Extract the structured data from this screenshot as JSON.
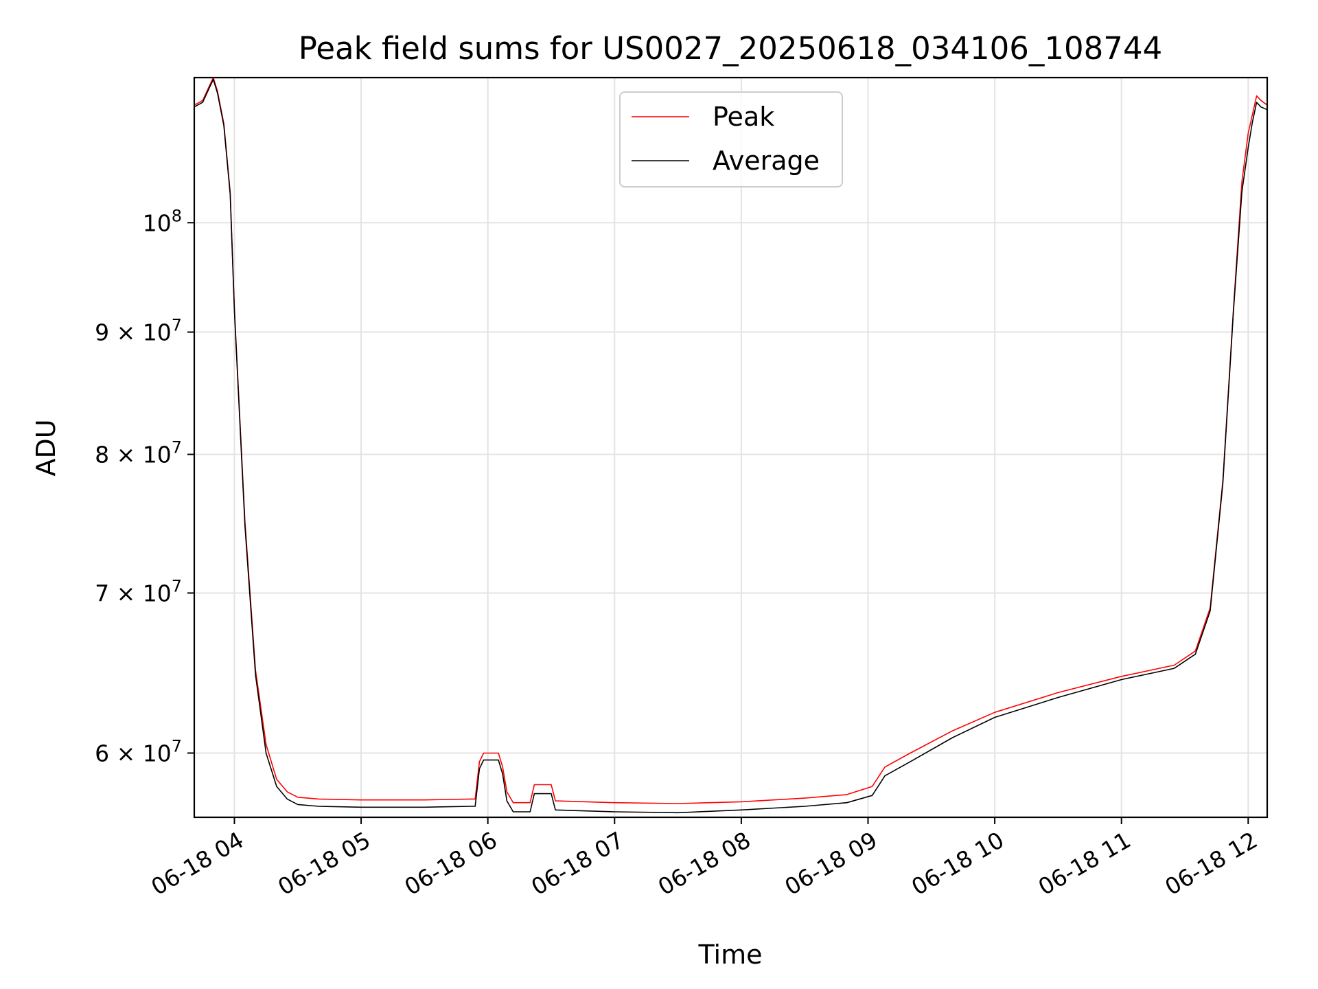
{
  "chart_data": {
    "type": "line",
    "title": "Peak field sums for US0027_20250618_034106_108744",
    "xlabel": "Time",
    "ylabel": "ADU",
    "y_scale": "log",
    "grid": true,
    "legend_position": "top-center",
    "xlim": [
      "06-18 03:41",
      "06-18 12:09"
    ],
    "ylim": [
      56400000,
      115000000
    ],
    "x_ticks": [
      {
        "value": "06-18 04:00",
        "label": "06-18 04"
      },
      {
        "value": "06-18 05:00",
        "label": "06-18 05"
      },
      {
        "value": "06-18 06:00",
        "label": "06-18 06"
      },
      {
        "value": "06-18 07:00",
        "label": "06-18 07"
      },
      {
        "value": "06-18 08:00",
        "label": "06-18 08"
      },
      {
        "value": "06-18 09:00",
        "label": "06-18 09"
      },
      {
        "value": "06-18 10:00",
        "label": "06-18 10"
      },
      {
        "value": "06-18 11:00",
        "label": "06-18 11"
      },
      {
        "value": "06-18 12:00",
        "label": "06-18 12"
      }
    ],
    "y_ticks": [
      {
        "value": 60000000,
        "mantissa": "6",
        "base": "10",
        "exp": "7"
      },
      {
        "value": 70000000,
        "mantissa": "7",
        "base": "10",
        "exp": "7"
      },
      {
        "value": 80000000,
        "mantissa": "8",
        "base": "10",
        "exp": "7"
      },
      {
        "value": 90000000,
        "mantissa": "9",
        "base": "10",
        "exp": "7"
      },
      {
        "value": 100000000,
        "mantissa": "",
        "base": "10",
        "exp": "8"
      }
    ],
    "series": [
      {
        "name": "Peak",
        "color": "#ff0000",
        "points": [
          [
            "06-18 03:41",
            112000000
          ],
          [
            "06-18 03:45",
            112500000
          ],
          [
            "06-18 03:48",
            114000000
          ],
          [
            "06-18 03:50",
            115000000
          ],
          [
            "06-18 03:52",
            113500000
          ],
          [
            "06-18 03:55",
            110000000
          ],
          [
            "06-18 03:58",
            103000000
          ],
          [
            "06-18 04:00",
            92000000
          ],
          [
            "06-18 04:05",
            75000000
          ],
          [
            "06-18 04:10",
            65000000
          ],
          [
            "06-18 04:15",
            60500000
          ],
          [
            "06-18 04:20",
            58500000
          ],
          [
            "06-18 04:25",
            57800000
          ],
          [
            "06-18 04:30",
            57500000
          ],
          [
            "06-18 04:40",
            57400000
          ],
          [
            "06-18 05:00",
            57350000
          ],
          [
            "06-18 05:30",
            57350000
          ],
          [
            "06-18 05:52",
            57400000
          ],
          [
            "06-18 05:54",
            57400000
          ],
          [
            "06-18 05:56",
            59500000
          ],
          [
            "06-18 05:58",
            60000000
          ],
          [
            "06-18 06:05",
            60000000
          ],
          [
            "06-18 06:07",
            59200000
          ],
          [
            "06-18 06:09",
            57800000
          ],
          [
            "06-18 06:12",
            57200000
          ],
          [
            "06-18 06:20",
            57200000
          ],
          [
            "06-18 06:22",
            58200000
          ],
          [
            "06-18 06:30",
            58200000
          ],
          [
            "06-18 06:32",
            57300000
          ],
          [
            "06-18 07:00",
            57200000
          ],
          [
            "06-18 07:30",
            57150000
          ],
          [
            "06-18 08:00",
            57250000
          ],
          [
            "06-18 08:30",
            57450000
          ],
          [
            "06-18 08:50",
            57650000
          ],
          [
            "06-18 09:02",
            58100000
          ],
          [
            "06-18 09:08",
            59200000
          ],
          [
            "06-18 09:20",
            60000000
          ],
          [
            "06-18 09:40",
            61300000
          ],
          [
            "06-18 10:00",
            62400000
          ],
          [
            "06-18 10:30",
            63600000
          ],
          [
            "06-18 11:00",
            64600000
          ],
          [
            "06-18 11:25",
            65300000
          ],
          [
            "06-18 11:35",
            66200000
          ],
          [
            "06-18 11:42",
            69000000
          ],
          [
            "06-18 11:48",
            78000000
          ],
          [
            "06-18 11:53",
            92000000
          ],
          [
            "06-18 11:57",
            104000000
          ],
          [
            "06-18 12:00",
            109000000
          ],
          [
            "06-18 12:02",
            111000000
          ],
          [
            "06-18 12:04",
            113000000
          ],
          [
            "06-18 12:06",
            112500000
          ],
          [
            "06-18 12:09",
            112000000
          ]
        ]
      },
      {
        "name": "Average",
        "color": "#000000",
        "points": [
          [
            "06-18 03:41",
            111800000
          ],
          [
            "06-18 03:45",
            112300000
          ],
          [
            "06-18 03:48",
            113800000
          ],
          [
            "06-18 03:50",
            114800000
          ],
          [
            "06-18 03:52",
            113300000
          ],
          [
            "06-18 03:55",
            109800000
          ],
          [
            "06-18 03:58",
            102800000
          ],
          [
            "06-18 04:00",
            91800000
          ],
          [
            "06-18 04:05",
            74700000
          ],
          [
            "06-18 04:10",
            64700000
          ],
          [
            "06-18 04:15",
            60000000
          ],
          [
            "06-18 04:20",
            58100000
          ],
          [
            "06-18 04:25",
            57400000
          ],
          [
            "06-18 04:30",
            57100000
          ],
          [
            "06-18 04:40",
            57000000
          ],
          [
            "06-18 05:00",
            56950000
          ],
          [
            "06-18 05:30",
            56950000
          ],
          [
            "06-18 05:52",
            57000000
          ],
          [
            "06-18 05:54",
            57000000
          ],
          [
            "06-18 05:56",
            59100000
          ],
          [
            "06-18 05:58",
            59600000
          ],
          [
            "06-18 06:05",
            59600000
          ],
          [
            "06-18 06:07",
            58800000
          ],
          [
            "06-18 06:09",
            57300000
          ],
          [
            "06-18 06:12",
            56700000
          ],
          [
            "06-18 06:20",
            56700000
          ],
          [
            "06-18 06:22",
            57700000
          ],
          [
            "06-18 06:30",
            57700000
          ],
          [
            "06-18 06:32",
            56800000
          ],
          [
            "06-18 07:00",
            56700000
          ],
          [
            "06-18 07:30",
            56650000
          ],
          [
            "06-18 08:00",
            56800000
          ],
          [
            "06-18 08:30",
            57000000
          ],
          [
            "06-18 08:50",
            57200000
          ],
          [
            "06-18 09:02",
            57600000
          ],
          [
            "06-18 09:08",
            58700000
          ],
          [
            "06-18 09:20",
            59500000
          ],
          [
            "06-18 09:40",
            60900000
          ],
          [
            "06-18 10:00",
            62100000
          ],
          [
            "06-18 10:30",
            63300000
          ],
          [
            "06-18 11:00",
            64400000
          ],
          [
            "06-18 11:25",
            65100000
          ],
          [
            "06-18 11:35",
            66000000
          ],
          [
            "06-18 11:42",
            68800000
          ],
          [
            "06-18 11:48",
            77800000
          ],
          [
            "06-18 11:53",
            91800000
          ],
          [
            "06-18 11:57",
            103000000
          ],
          [
            "06-18 12:00",
            107500000
          ],
          [
            "06-18 12:02",
            110200000
          ],
          [
            "06-18 12:04",
            112300000
          ],
          [
            "06-18 12:06",
            111800000
          ],
          [
            "06-18 12:09",
            111500000
          ]
        ]
      }
    ]
  }
}
